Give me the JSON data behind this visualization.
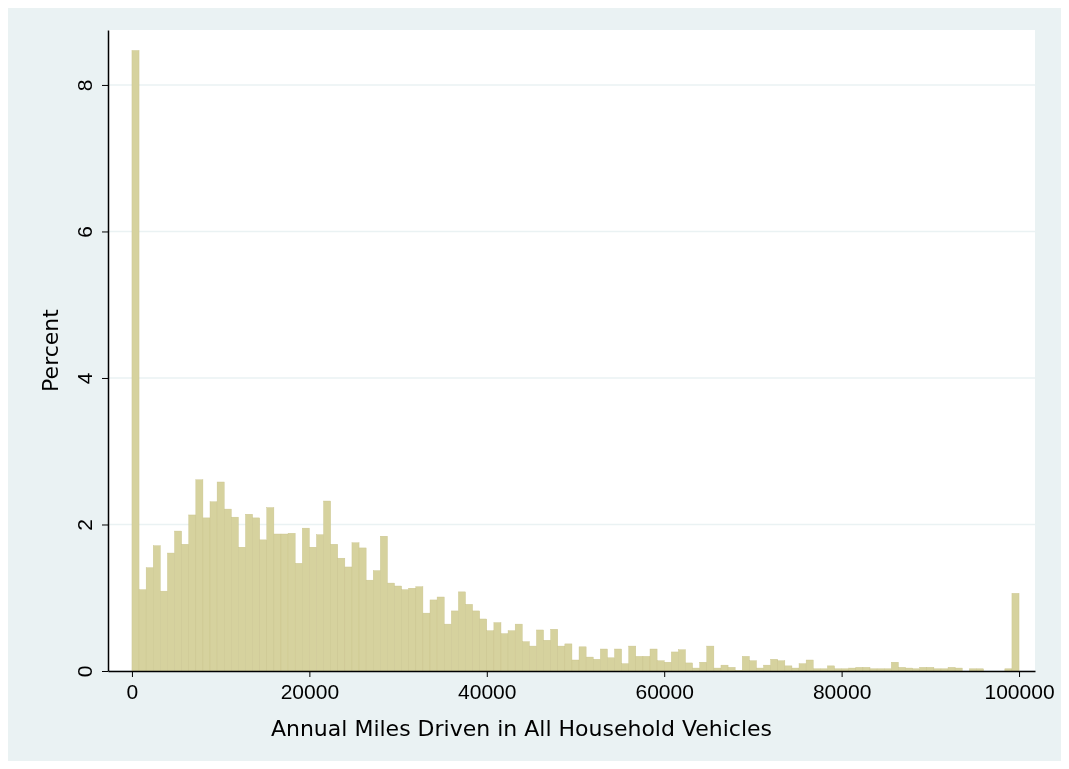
{
  "chart_data": {
    "type": "histogram",
    "xlabel": "Annual Miles Driven in All Household Vehicles",
    "ylabel": "Percent",
    "bins": [
      0,
      800,
      1600,
      2400,
      3200,
      4000,
      4800,
      5600,
      6400,
      7200,
      8000,
      8800,
      9600,
      10400,
      11200,
      12000,
      12800,
      13600,
      14400,
      15200,
      16000,
      16800,
      17600,
      18400,
      19200,
      20000,
      20800,
      21600,
      22400,
      23200,
      24000,
      24800,
      25600,
      26400,
      27200,
      28000,
      28800,
      29600,
      30400,
      31200,
      32000,
      32800,
      33600,
      34400,
      35200,
      36000,
      36800,
      37600,
      38400,
      39200,
      40000,
      40800,
      41600,
      42400,
      43200,
      44000,
      44800,
      45600,
      46400,
      47200,
      48000,
      48800,
      49600,
      50400,
      51200,
      52000,
      52800,
      53600,
      54400,
      55200,
      56000,
      56800,
      57600,
      58400,
      59200,
      60000,
      60800,
      61600,
      62400,
      63200,
      64000,
      64800,
      65600,
      66400,
      67200,
      68000,
      68800,
      69600,
      70400,
      71200,
      72000,
      72800,
      73600,
      74400,
      75200,
      76000,
      76800,
      77600,
      78400,
      79200,
      80000,
      80800,
      81600,
      82400,
      83200,
      84000,
      84800,
      85600,
      86400,
      87200,
      88000,
      88800,
      89600,
      90400,
      91200,
      92000,
      92800,
      93600,
      94400,
      95200,
      96000,
      96800,
      97600,
      98400,
      99200,
      100000
    ],
    "values": [
      8.47,
      1.11,
      1.41,
      1.71,
      1.09,
      1.61,
      1.91,
      1.73,
      2.13,
      2.61,
      2.09,
      2.31,
      2.58,
      2.21,
      2.1,
      1.69,
      2.14,
      2.09,
      1.79,
      2.23,
      1.87,
      1.87,
      1.88,
      1.47,
      1.95,
      1.69,
      1.86,
      2.32,
      1.73,
      1.54,
      1.42,
      1.75,
      1.68,
      1.24,
      1.37,
      1.84,
      1.2,
      1.16,
      1.11,
      1.13,
      1.15,
      0.79,
      0.97,
      1.01,
      0.64,
      0.82,
      1.08,
      0.91,
      0.82,
      0.71,
      0.55,
      0.66,
      0.51,
      0.55,
      0.64,
      0.4,
      0.34,
      0.56,
      0.42,
      0.57,
      0.34,
      0.37,
      0.15,
      0.33,
      0.19,
      0.16,
      0.3,
      0.18,
      0.3,
      0.1,
      0.34,
      0.2,
      0.2,
      0.3,
      0.14,
      0.12,
      0.26,
      0.29,
      0.11,
      0.04,
      0.12,
      0.34,
      0.04,
      0.08,
      0.05,
      0.01,
      0.2,
      0.14,
      0.04,
      0.08,
      0.16,
      0.14,
      0.07,
      0.04,
      0.1,
      0.15,
      0.03,
      0.03,
      0.07,
      0.03,
      0.03,
      0.04,
      0.05,
      0.05,
      0.03,
      0.03,
      0.03,
      0.12,
      0.05,
      0.04,
      0.03,
      0.05,
      0.05,
      0.03,
      0.03,
      0.05,
      0.04,
      0,
      0.03,
      0.03,
      0,
      0,
      0,
      0.03,
      1.06
    ],
    "color": "#d6d29e",
    "xlim": [
      -2700,
      101800
    ],
    "ylim": [
      0,
      8.75
    ],
    "xticks": [
      0,
      20000,
      40000,
      60000,
      80000,
      100000
    ],
    "yticks": [
      0,
      2,
      4,
      6,
      8
    ],
    "grid": "y"
  }
}
